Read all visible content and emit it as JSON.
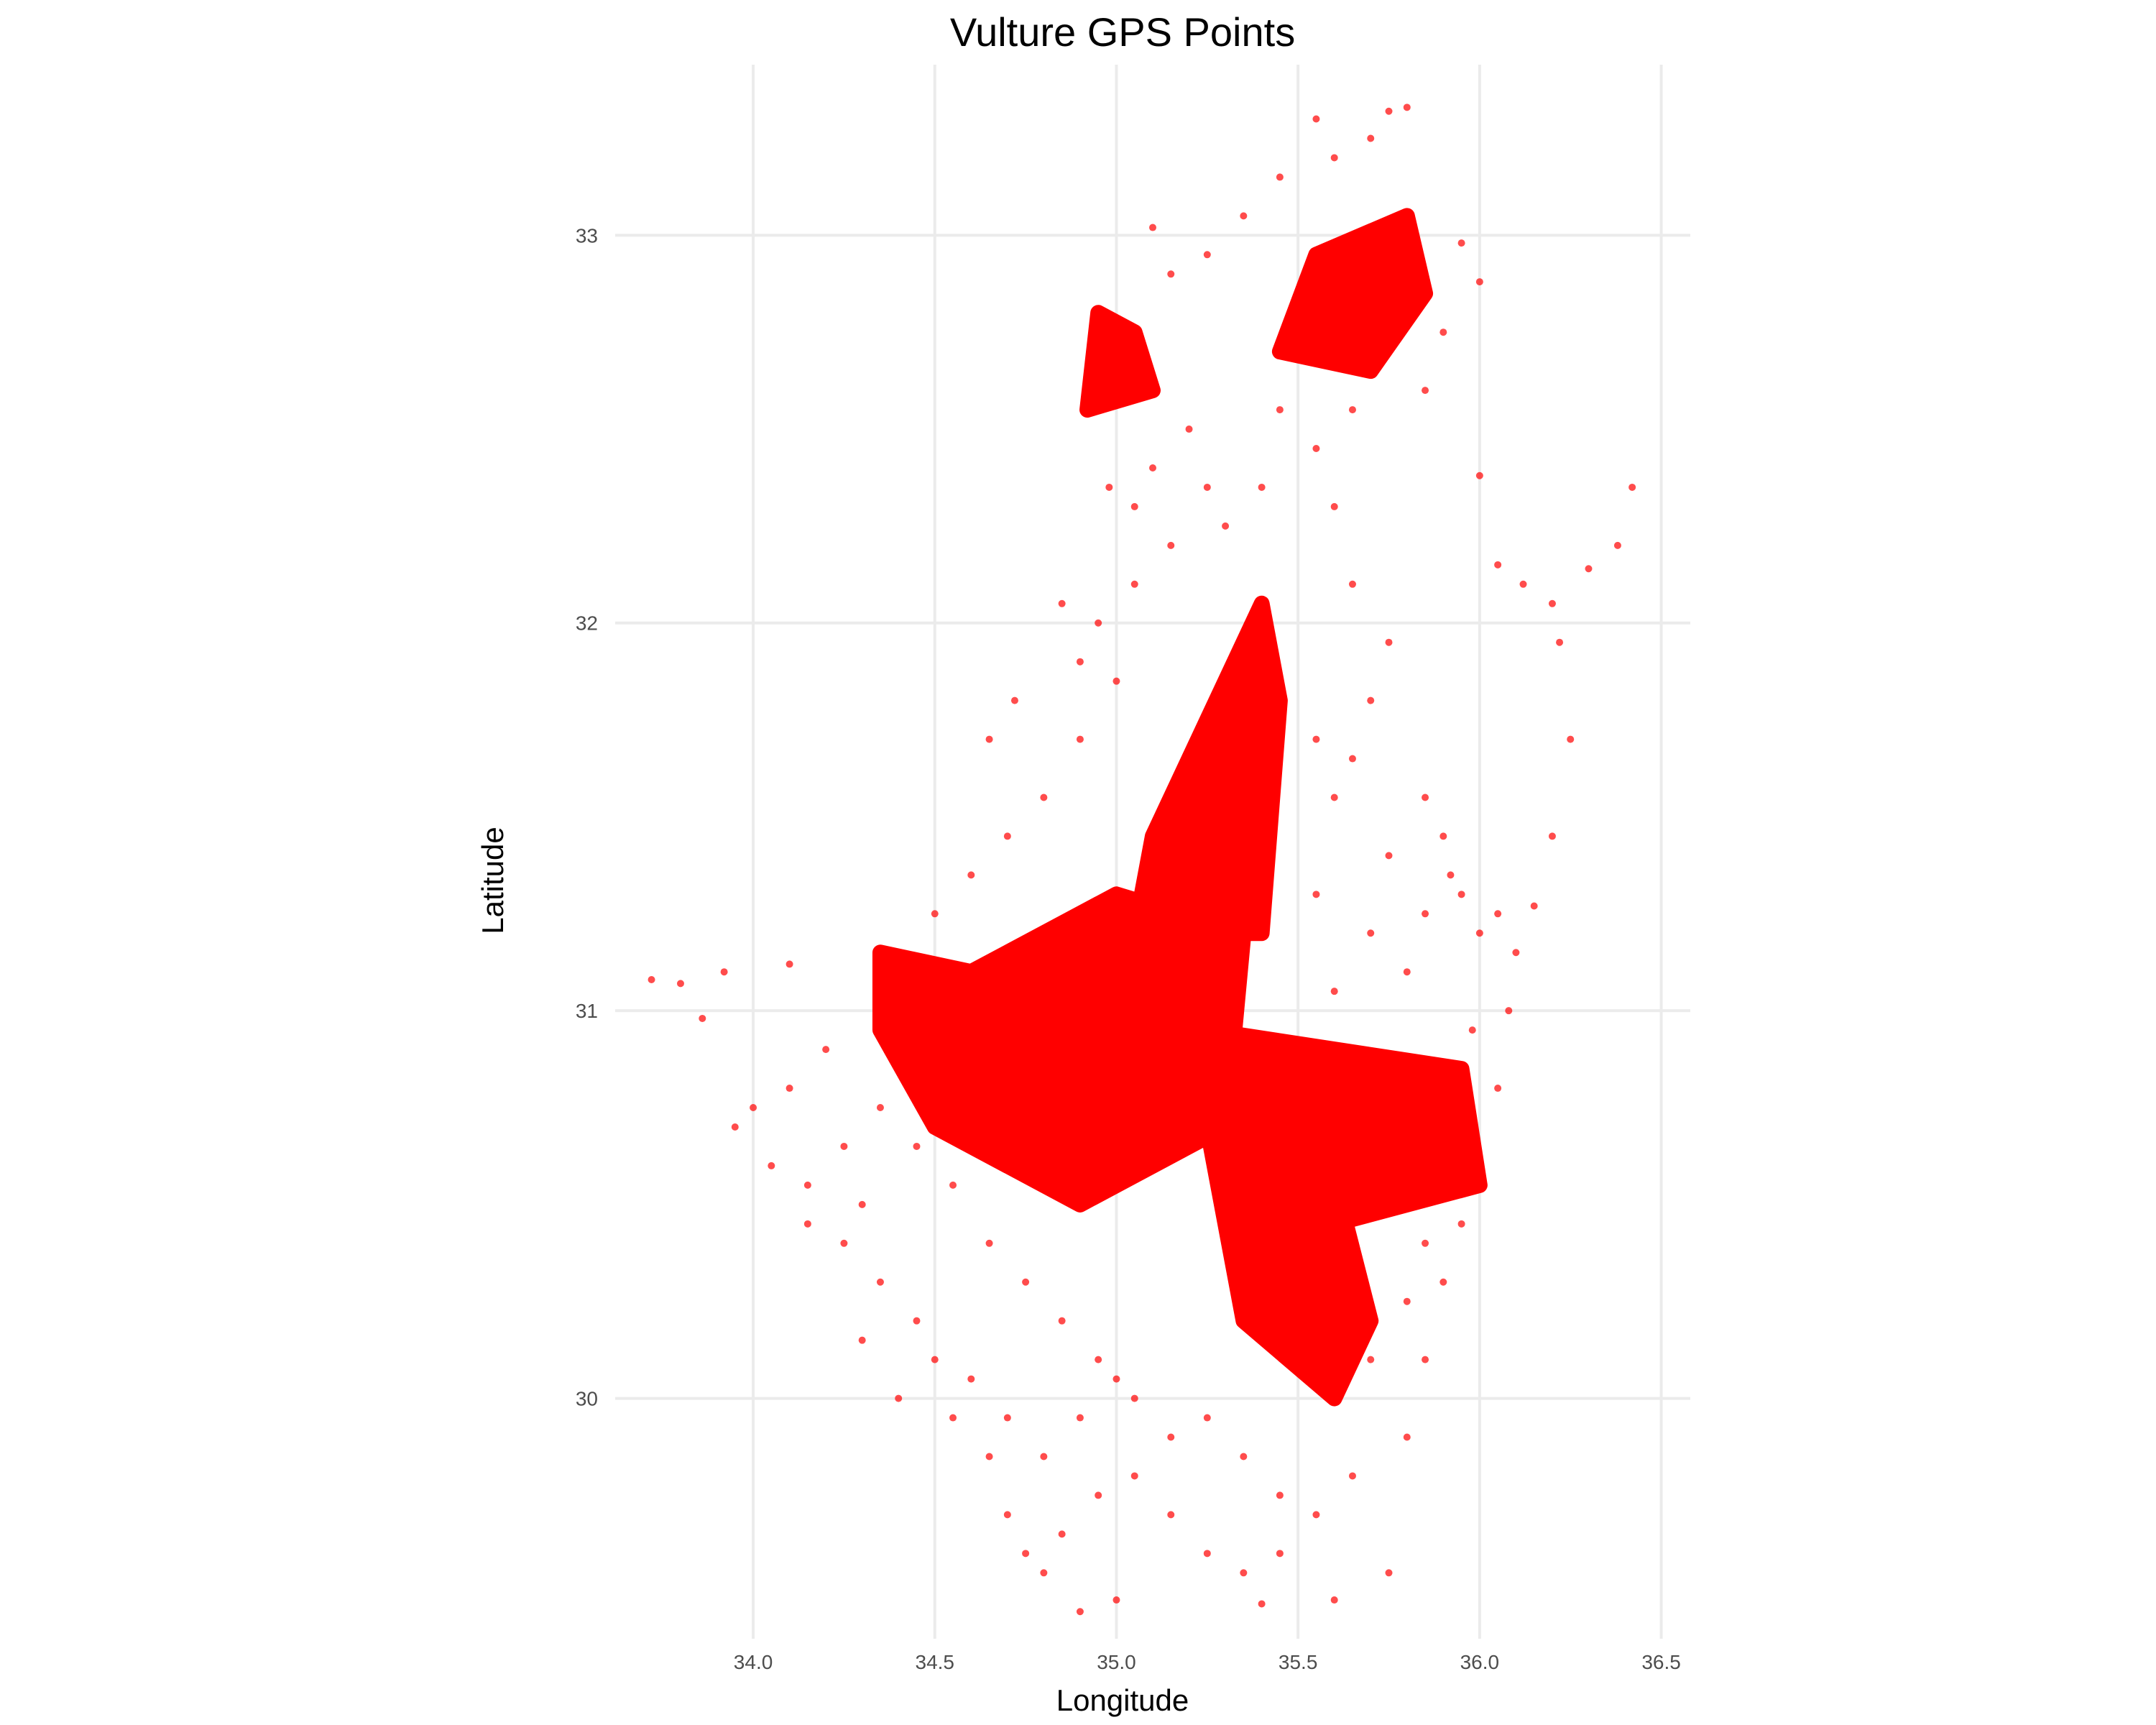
{
  "chart_data": {
    "type": "scatter",
    "title": "Vulture GPS Points",
    "xlabel": "Longitude",
    "ylabel": "Latitude",
    "xlim": [
      33.62,
      36.58
    ],
    "ylim": [
      29.38,
      33.44
    ],
    "x_ticks": [
      34.0,
      34.5,
      35.0,
      35.5,
      36.0,
      36.5
    ],
    "x_tick_labels": [
      "34.0",
      "34.5",
      "35.0",
      "35.5",
      "36.0",
      "36.5"
    ],
    "y_ticks": [
      30,
      31,
      32,
      33
    ],
    "y_tick_labels": [
      "30",
      "31",
      "32",
      "33"
    ],
    "grid": true,
    "legend": "none",
    "point_color": "#ff0000",
    "point_alpha": 0.7,
    "dense_regions": [
      {
        "name": "northern-cluster",
        "polygon": [
          [
            34.92,
            32.55
          ],
          [
            34.95,
            32.8
          ],
          [
            35.05,
            32.75
          ],
          [
            35.1,
            32.6
          ]
        ]
      },
      {
        "name": "northern-ring",
        "polygon": [
          [
            35.45,
            32.7
          ],
          [
            35.55,
            32.95
          ],
          [
            35.8,
            33.05
          ],
          [
            35.85,
            32.85
          ],
          [
            35.7,
            32.65
          ]
        ]
      },
      {
        "name": "central-spine",
        "polygon": [
          [
            35.05,
            31.2
          ],
          [
            35.1,
            31.45
          ],
          [
            35.25,
            31.75
          ],
          [
            35.4,
            32.05
          ],
          [
            35.45,
            31.8
          ],
          [
            35.4,
            31.2
          ]
        ]
      },
      {
        "name": "western-wing",
        "polygon": [
          [
            34.35,
            31.15
          ],
          [
            34.6,
            31.1
          ],
          [
            35.0,
            31.3
          ],
          [
            35.35,
            31.2
          ],
          [
            35.3,
            30.7
          ],
          [
            34.9,
            30.5
          ],
          [
            34.5,
            30.7
          ],
          [
            34.35,
            30.95
          ]
        ]
      },
      {
        "name": "eastern-arm",
        "polygon": [
          [
            35.25,
            30.95
          ],
          [
            35.6,
            30.9
          ],
          [
            35.95,
            30.85
          ],
          [
            36.0,
            30.55
          ],
          [
            35.6,
            30.45
          ],
          [
            35.3,
            30.6
          ]
        ]
      },
      {
        "name": "southern-lobe",
        "polygon": [
          [
            35.25,
            30.7
          ],
          [
            35.55,
            30.75
          ],
          [
            35.7,
            30.2
          ],
          [
            35.6,
            30.0
          ],
          [
            35.35,
            30.2
          ]
        ]
      }
    ],
    "outlier_points": [
      [
        33.72,
        31.08
      ],
      [
        33.8,
        31.07
      ],
      [
        33.86,
        30.98
      ],
      [
        33.92,
        31.1
      ],
      [
        34.1,
        31.12
      ],
      [
        36.0,
        32.38
      ],
      [
        36.05,
        32.15
      ],
      [
        36.12,
        32.1
      ],
      [
        36.2,
        32.05
      ],
      [
        36.3,
        32.14
      ],
      [
        36.38,
        32.2
      ],
      [
        36.42,
        32.35
      ],
      [
        36.25,
        31.7
      ],
      [
        36.2,
        31.45
      ],
      [
        36.22,
        31.95
      ],
      [
        35.8,
        33.33
      ],
      [
        35.75,
        33.32
      ],
      [
        35.55,
        33.3
      ],
      [
        35.95,
        32.98
      ],
      [
        36.0,
        32.88
      ],
      [
        34.65,
        31.7
      ],
      [
        34.72,
        31.8
      ],
      [
        34.85,
        32.05
      ],
      [
        34.9,
        31.9
      ],
      [
        36.15,
        31.27
      ],
      [
        34.9,
        29.45
      ],
      [
        35.0,
        29.48
      ],
      [
        35.4,
        29.47
      ],
      [
        35.6,
        29.48
      ],
      [
        35.75,
        29.55
      ]
    ],
    "scatter_points": [
      [
        34.2,
        30.9
      ],
      [
        34.1,
        30.8
      ],
      [
        34.0,
        30.75
      ],
      [
        33.95,
        30.7
      ],
      [
        34.05,
        30.6
      ],
      [
        34.15,
        30.55
      ],
      [
        34.3,
        30.5
      ],
      [
        34.25,
        30.4
      ],
      [
        34.35,
        30.3
      ],
      [
        34.45,
        30.2
      ],
      [
        34.5,
        30.1
      ],
      [
        34.4,
        30.0
      ],
      [
        34.55,
        29.95
      ],
      [
        34.65,
        29.85
      ],
      [
        34.7,
        29.7
      ],
      [
        34.75,
        29.6
      ],
      [
        34.8,
        29.55
      ],
      [
        34.85,
        29.65
      ],
      [
        34.95,
        29.75
      ],
      [
        35.05,
        29.8
      ],
      [
        35.15,
        29.7
      ],
      [
        35.25,
        29.6
      ],
      [
        35.35,
        29.55
      ],
      [
        35.45,
        29.6
      ],
      [
        35.55,
        29.7
      ],
      [
        35.65,
        29.8
      ],
      [
        35.8,
        29.9
      ],
      [
        35.85,
        30.1
      ],
      [
        35.9,
        30.3
      ],
      [
        35.95,
        30.45
      ],
      [
        36.05,
        30.8
      ],
      [
        36.08,
        31.0
      ],
      [
        36.1,
        31.15
      ],
      [
        36.05,
        31.25
      ],
      [
        35.95,
        31.3
      ],
      [
        35.9,
        31.45
      ],
      [
        35.85,
        31.55
      ],
      [
        35.75,
        31.4
      ],
      [
        35.7,
        31.2
      ],
      [
        35.6,
        31.05
      ],
      [
        35.55,
        31.3
      ],
      [
        35.6,
        31.55
      ],
      [
        35.55,
        31.7
      ],
      [
        35.7,
        31.8
      ],
      [
        35.75,
        31.95
      ],
      [
        35.65,
        32.1
      ],
      [
        35.6,
        32.3
      ],
      [
        35.55,
        32.45
      ],
      [
        35.4,
        32.35
      ],
      [
        35.3,
        32.25
      ],
      [
        35.15,
        32.2
      ],
      [
        35.05,
        32.1
      ],
      [
        34.95,
        32.0
      ],
      [
        35.0,
        31.85
      ],
      [
        34.9,
        31.7
      ],
      [
        34.8,
        31.55
      ],
      [
        34.7,
        31.45
      ],
      [
        34.6,
        31.35
      ],
      [
        34.5,
        31.25
      ],
      [
        35.1,
        32.4
      ],
      [
        35.2,
        32.5
      ],
      [
        34.98,
        32.35
      ],
      [
        35.05,
        32.3
      ],
      [
        35.25,
        32.35
      ],
      [
        35.45,
        32.55
      ],
      [
        35.65,
        32.55
      ],
      [
        35.85,
        32.6
      ],
      [
        35.9,
        32.75
      ],
      [
        35.35,
        33.05
      ],
      [
        35.45,
        33.15
      ],
      [
        35.6,
        33.2
      ],
      [
        35.25,
        32.95
      ],
      [
        35.15,
        32.9
      ],
      [
        35.1,
        33.02
      ],
      [
        35.7,
        33.25
      ],
      [
        34.55,
        30.55
      ],
      [
        34.65,
        30.4
      ],
      [
        34.75,
        30.3
      ],
      [
        34.85,
        30.2
      ],
      [
        34.95,
        30.1
      ],
      [
        35.05,
        30.0
      ],
      [
        35.15,
        29.9
      ],
      [
        35.25,
        29.95
      ],
      [
        35.35,
        29.85
      ],
      [
        35.45,
        29.75
      ],
      [
        34.45,
        30.65
      ],
      [
        34.35,
        30.75
      ],
      [
        34.25,
        30.65
      ],
      [
        34.15,
        30.45
      ],
      [
        34.3,
        30.15
      ],
      [
        34.6,
        30.05
      ],
      [
        34.7,
        29.95
      ],
      [
        34.8,
        29.85
      ],
      [
        34.9,
        29.95
      ],
      [
        35.0,
        30.05
      ],
      [
        35.7,
        30.1
      ],
      [
        35.8,
        30.25
      ],
      [
        35.85,
        30.4
      ],
      [
        35.9,
        30.6
      ],
      [
        35.8,
        31.1
      ],
      [
        35.85,
        31.25
      ],
      [
        35.92,
        31.35
      ],
      [
        36.0,
        31.2
      ],
      [
        35.98,
        30.95
      ],
      [
        35.65,
        31.65
      ]
    ]
  }
}
